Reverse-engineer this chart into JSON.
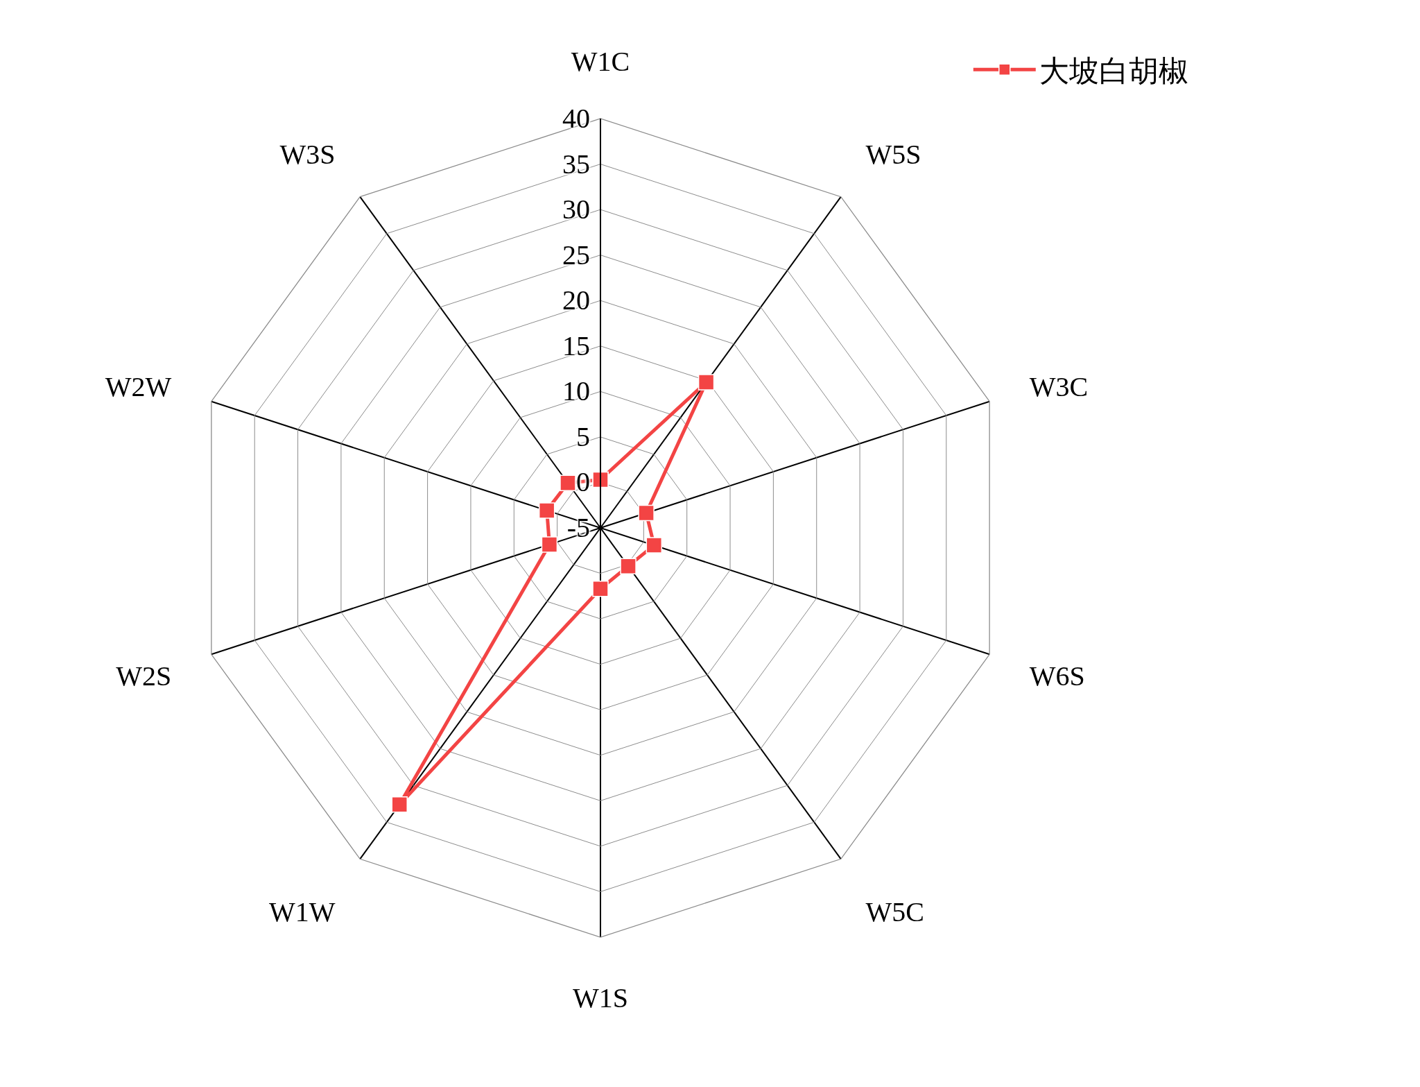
{
  "chart_data": {
    "type": "radar",
    "categories": [
      "W1C",
      "W5S",
      "W3C",
      "W6S",
      "W5C",
      "W1S",
      "W1W",
      "W2S",
      "W2W",
      "W3S"
    ],
    "series": [
      {
        "name": "大坡白胡椒",
        "color": "#f34444",
        "values": [
          0.3,
          14.8,
          0.3,
          1.2,
          0.2,
          1.7,
          32.6,
          0.9,
          1.2,
          1.1
        ]
      }
    ],
    "ylim": [
      -5,
      40
    ],
    "yticks": [
      -5,
      0,
      5,
      10,
      15,
      20,
      25,
      30,
      35,
      40
    ],
    "grid": true,
    "legend": "top right",
    "marker": "square",
    "line_style": "solid"
  }
}
